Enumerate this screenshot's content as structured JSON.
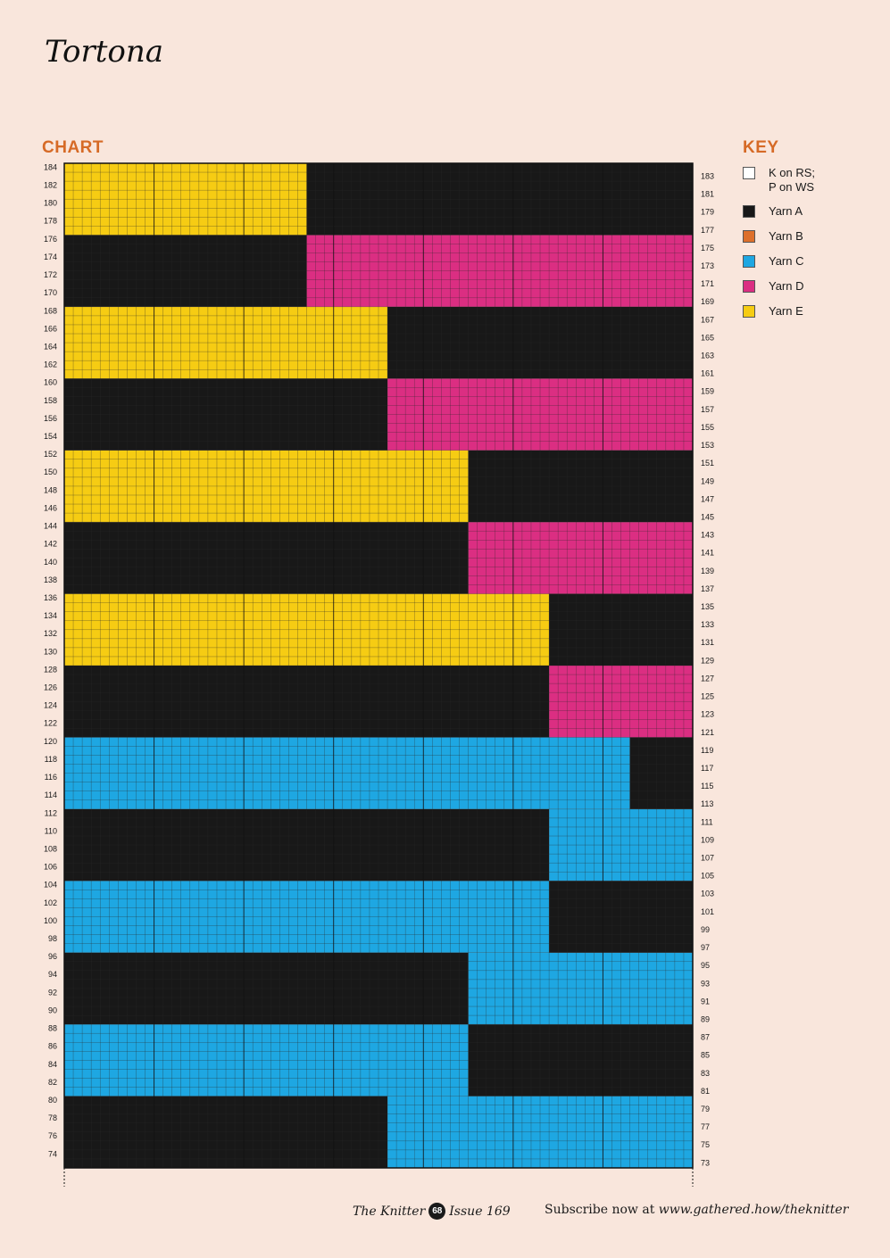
{
  "title": "Tortona",
  "chart_heading": "CHART",
  "key_heading": "KEY",
  "colors": {
    "heading": "#d66a26",
    "A": "#181818",
    "B": "#dd6f2b",
    "C": "#1ea7e2",
    "D": "#db2e82",
    "E": "#f6cc13",
    "bg": "#f9e6dc"
  },
  "key": [
    {
      "color": "#ffffff",
      "label": "K on RS;\nP on WS",
      "icon": "white-square"
    },
    {
      "color": "#181818",
      "label": "Yarn A",
      "icon": "black-square"
    },
    {
      "color": "#dd6f2b",
      "label": "Yarn B",
      "icon": "orange-square"
    },
    {
      "color": "#1ea7e2",
      "label": "Yarn C",
      "icon": "blue-square"
    },
    {
      "color": "#db2e82",
      "label": "Yarn D",
      "icon": "pink-square"
    },
    {
      "color": "#f6cc13",
      "label": "Yarn E",
      "icon": "yellow-square"
    }
  ],
  "chart_data": {
    "type": "table",
    "stitches": 70,
    "first_row": 73,
    "last_row": 184,
    "bands": [
      {
        "rows": [
          73,
          80
        ],
        "left_yarn": "A",
        "left_stitches": 36,
        "right_yarn": "C"
      },
      {
        "rows": [
          81,
          88
        ],
        "left_yarn": "C",
        "left_stitches": 45,
        "right_yarn": "A"
      },
      {
        "rows": [
          89,
          96
        ],
        "left_yarn": "A",
        "left_stitches": 45,
        "right_yarn": "C"
      },
      {
        "rows": [
          97,
          104
        ],
        "left_yarn": "C",
        "left_stitches": 54,
        "right_yarn": "A"
      },
      {
        "rows": [
          105,
          112
        ],
        "left_yarn": "A",
        "left_stitches": 54,
        "right_yarn": "C"
      },
      {
        "rows": [
          113,
          120
        ],
        "left_yarn": "C",
        "left_stitches": 63,
        "right_yarn": "A"
      },
      {
        "rows": [
          121,
          128
        ],
        "left_yarn": "A",
        "left_stitches": 54,
        "right_yarn": "D"
      },
      {
        "rows": [
          129,
          136
        ],
        "left_yarn": "E",
        "left_stitches": 54,
        "right_yarn": "A"
      },
      {
        "rows": [
          137,
          144
        ],
        "left_yarn": "A",
        "left_stitches": 45,
        "right_yarn": "D"
      },
      {
        "rows": [
          145,
          152
        ],
        "left_yarn": "E",
        "left_stitches": 45,
        "right_yarn": "A"
      },
      {
        "rows": [
          153,
          160
        ],
        "left_yarn": "A",
        "left_stitches": 36,
        "right_yarn": "D"
      },
      {
        "rows": [
          161,
          168
        ],
        "left_yarn": "E",
        "left_stitches": 36,
        "right_yarn": "A"
      },
      {
        "rows": [
          169,
          176
        ],
        "left_yarn": "A",
        "left_stitches": 27,
        "right_yarn": "D"
      },
      {
        "rows": [
          177,
          184
        ],
        "left_yarn": "E",
        "left_stitches": 27,
        "right_yarn": "A"
      }
    ]
  },
  "footer": {
    "magazine": "The Knitter",
    "page": "68",
    "issue": "Issue 169",
    "subscribe_text": "Subscribe now at ",
    "url": "www.gathered.how/theknitter"
  }
}
